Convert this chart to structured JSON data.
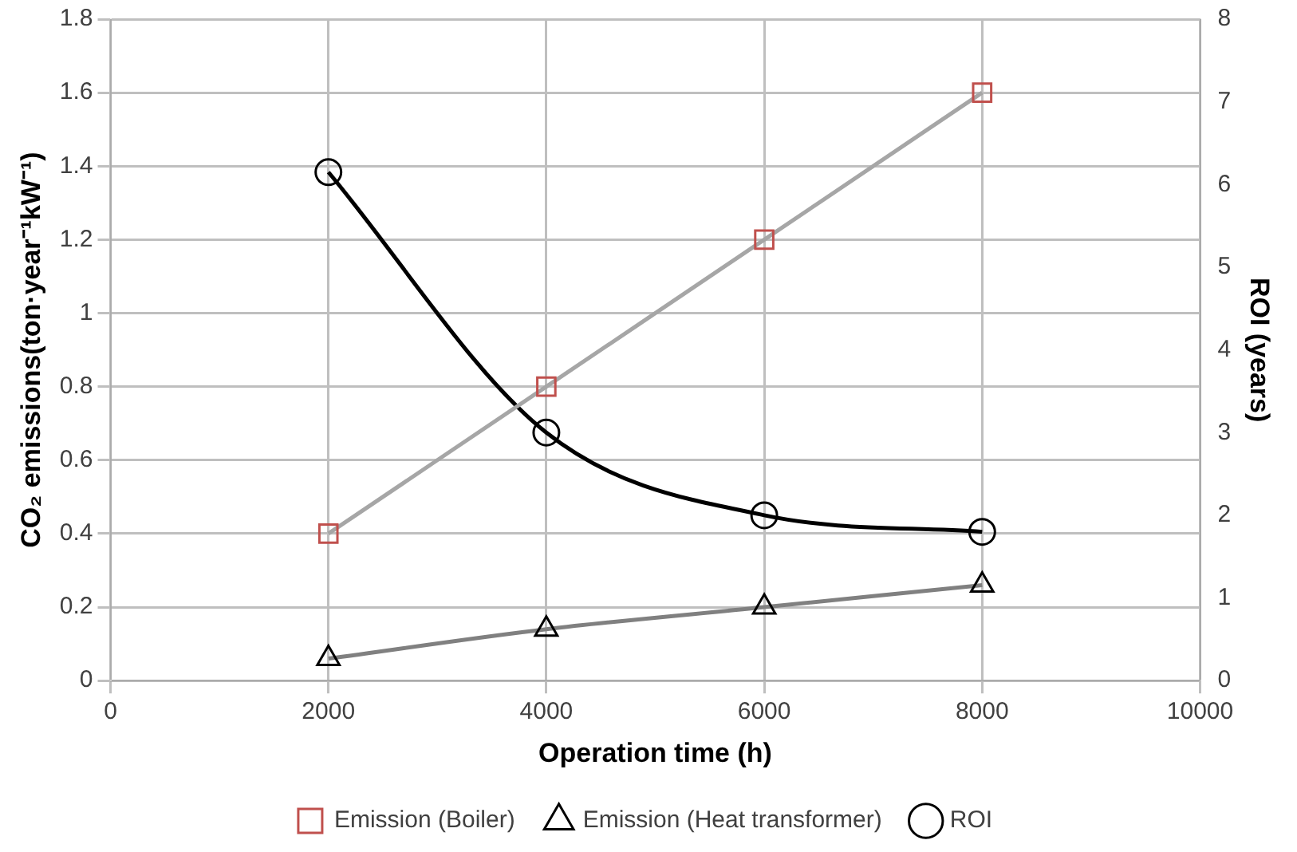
{
  "chart_data": {
    "type": "line",
    "xlabel": "Operation time (h)",
    "ylabel": "CO₂ emissions(ton·year⁻¹kW⁻¹)",
    "y2label": "ROI (years)",
    "x": [
      2000,
      4000,
      6000,
      8000
    ],
    "series": [
      {
        "name": "Emission (Boiler)",
        "color": "#a6a6a6",
        "colors": [
          "#c0504d",
          "#c0504d",
          "#c0504d",
          "#c0504d"
        ],
        "marker": "square",
        "values": [
          0.4,
          0.8,
          1.2,
          1.6
        ]
      },
      {
        "name": "Emission (Heat transformer)",
        "color": "#808080",
        "colors": [
          "#000000",
          "#000000",
          "#000000",
          "#000000"
        ],
        "marker": "triangle",
        "values": [
          0.06,
          0.14,
          0.2,
          0.26
        ]
      },
      {
        "name": "ROI",
        "color": "#000000",
        "marker": "circle",
        "axis": "y2",
        "values": [
          6.15,
          3.0,
          2.0,
          1.8
        ]
      }
    ],
    "xlim": [
      0,
      10000
    ],
    "xticks": [
      0,
      2000,
      4000,
      6000,
      8000,
      10000
    ],
    "ylim": [
      0,
      1.8
    ],
    "yticks": [
      0,
      0.2,
      0.4,
      0.6,
      0.8,
      1,
      1.2,
      1.4,
      1.6,
      1.8
    ],
    "y2lim": [
      0,
      8
    ],
    "y2ticks": [
      0,
      1,
      2,
      3,
      4,
      5,
      6,
      7,
      8
    ],
    "grid": true,
    "legend": "bottom"
  }
}
